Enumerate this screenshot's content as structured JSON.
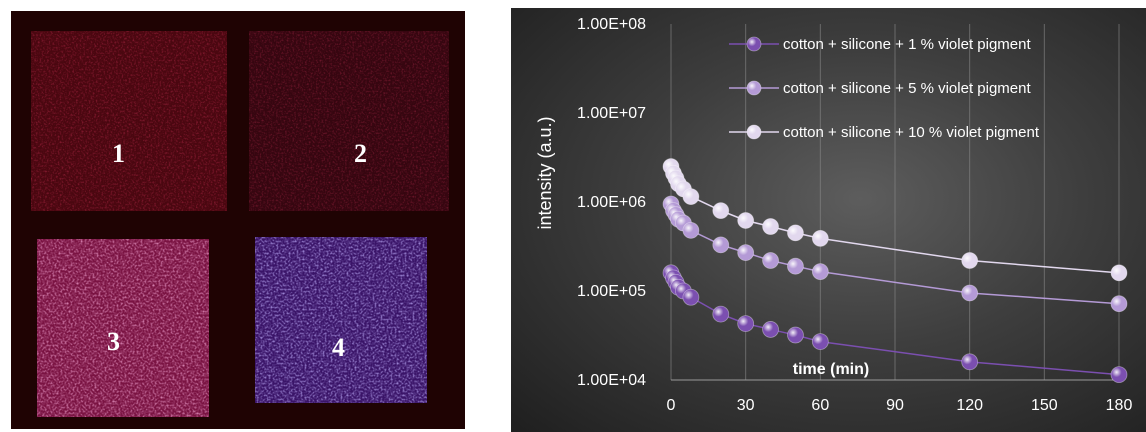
{
  "photo": {
    "labels": [
      "1",
      "2",
      "3",
      "4"
    ]
  },
  "chart_data": {
    "type": "line",
    "title": "",
    "xlabel": "time (min)",
    "ylabel": "intensity (a.u.)",
    "y_scale": "log",
    "xlim": [
      0,
      180
    ],
    "ylim": [
      10000,
      100000000
    ],
    "x_ticks": [
      "0",
      "30",
      "60",
      "90",
      "120",
      "150",
      "180"
    ],
    "y_ticks": [
      "1.00E+04",
      "1.00E+05",
      "1.00E+06",
      "1.00E+07",
      "1.00E+08"
    ],
    "grid": "vertical",
    "legend_position": "top-right",
    "x": [
      0,
      1,
      2,
      3,
      5,
      8,
      20,
      30,
      40,
      50,
      60,
      120,
      180
    ],
    "series": [
      {
        "name": "cotton + silicone + 1 % violet pigment",
        "color": "#7b4fb0",
        "values": [
          160000,
          140000,
          125000,
          110000,
          100000,
          85000,
          55000,
          43000,
          37000,
          32000,
          27000,
          16000,
          11500
        ]
      },
      {
        "name": "cotton + silicone + 5 % violet pigment",
        "color": "#b49ad6",
        "values": [
          950000,
          800000,
          720000,
          640000,
          580000,
          480000,
          330000,
          270000,
          220000,
          190000,
          165000,
          95000,
          72000
        ]
      },
      {
        "name": "cotton + silicone + 10 % violet pigment",
        "color": "#e2d8ee",
        "values": [
          2500000,
          2100000,
          1850000,
          1600000,
          1400000,
          1150000,
          800000,
          620000,
          530000,
          450000,
          390000,
          220000,
          160000
        ]
      }
    ]
  }
}
